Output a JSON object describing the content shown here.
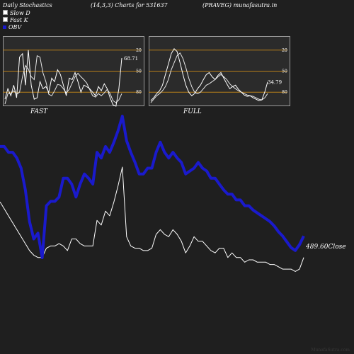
{
  "header": {
    "title": "Daily Stochastics",
    "params": "(14,3,3) Charts for 531637",
    "symbol": "(PRAVEG) munafasutra.in"
  },
  "legend": [
    {
      "label": "Slow  D",
      "color": "#ffffff"
    },
    {
      "label": "Fast K",
      "color": "#ffffff"
    },
    {
      "label": "OBV",
      "color": "#1a1acc"
    }
  ],
  "watermark": "MunafaSutra.com",
  "chart_data": [
    {
      "type": "line",
      "title": "FAST",
      "ylim": [
        0,
        100
      ],
      "ref_lines": [
        20,
        50,
        80
      ],
      "tick_labels": [
        "80",
        "50",
        "20"
      ],
      "last_value_label": "68.71",
      "series": [
        {
          "name": "Slow  D",
          "values": [
            3,
            18,
            18,
            22,
            17,
            20,
            42,
            58,
            53,
            42,
            38,
            72,
            70,
            48,
            35,
            17,
            15,
            22,
            31,
            30,
            25,
            19,
            24,
            33,
            42,
            47,
            42,
            38,
            33,
            24,
            15,
            13,
            18,
            15,
            19,
            24,
            18,
            8,
            5,
            9,
            18
          ]
        },
        {
          "name": "Fast K",
          "values": [
            10,
            25,
            15,
            30,
            12,
            70,
            75,
            30,
            80,
            30,
            10,
            12,
            35,
            25,
            28,
            20,
            40,
            35,
            52,
            45,
            30,
            15,
            40,
            38,
            48,
            35,
            20,
            30,
            28,
            25,
            20,
            15,
            28,
            22,
            32,
            25,
            12,
            2,
            0,
            25,
            68.71
          ]
        }
      ]
    },
    {
      "type": "line",
      "title": "FULL",
      "ylim": [
        0,
        100
      ],
      "ref_lines": [
        20,
        50,
        80
      ],
      "tick_labels": [
        "80",
        "50",
        "20"
      ],
      "last_value_label": "34.79",
      "series": [
        {
          "name": "Slow  D",
          "values": [
            5,
            10,
            15,
            18,
            22,
            28,
            38,
            52,
            62,
            72,
            76,
            68,
            55,
            40,
            28,
            20,
            18,
            20,
            25,
            30,
            32,
            35,
            38,
            42,
            45,
            42,
            38,
            32,
            28,
            25,
            22,
            20,
            18,
            16,
            15,
            14,
            12,
            10,
            9,
            12,
            18
          ]
        },
        {
          "name": "Fast K",
          "values": [
            8,
            12,
            18,
            22,
            30,
            45,
            60,
            75,
            82,
            78,
            62,
            45,
            30,
            20,
            15,
            18,
            25,
            30,
            38,
            45,
            48,
            42,
            38,
            44,
            48,
            40,
            32,
            25,
            28,
            30,
            24,
            20,
            16,
            14,
            15,
            12,
            10,
            8,
            9,
            20,
            34.79
          ]
        }
      ]
    },
    {
      "type": "line",
      "title": "",
      "close_label": "489.60Close",
      "series": [
        {
          "name": "OBV",
          "values": [
            77,
            77,
            73,
            73,
            69,
            62,
            47,
            25,
            13,
            17,
            0,
            36,
            39,
            39,
            42,
            55,
            55,
            51,
            42,
            51,
            58,
            55,
            51,
            73,
            69,
            77,
            73,
            80,
            88,
            98,
            81,
            73,
            66,
            58,
            58,
            62,
            62,
            73,
            80,
            73,
            69,
            73,
            69,
            66,
            58,
            60,
            62,
            66,
            62,
            60,
            55,
            55,
            51,
            47,
            44,
            44,
            40,
            40,
            36,
            36,
            33,
            31,
            29,
            27,
            25,
            22,
            18,
            15,
            11,
            7,
            5,
            9,
            15
          ]
        },
        {
          "name": "Price",
          "values": [
            25,
            22,
            19,
            16,
            13,
            10,
            7,
            4,
            2,
            1,
            1,
            5,
            6,
            6,
            7,
            6,
            4,
            9,
            9,
            7,
            6,
            6,
            6,
            17,
            15,
            21,
            19,
            25,
            32,
            40,
            10,
            6,
            5,
            5,
            4,
            4,
            5,
            11,
            13,
            11,
            10,
            13,
            11,
            8,
            3,
            6,
            10,
            8,
            8,
            6,
            4,
            3,
            5,
            5,
            1,
            3,
            1,
            1,
            -1,
            0,
            0,
            -1,
            -1,
            -1,
            -2,
            -2,
            -3,
            -4,
            -4,
            -4,
            -5,
            -4,
            1
          ]
        }
      ]
    }
  ]
}
